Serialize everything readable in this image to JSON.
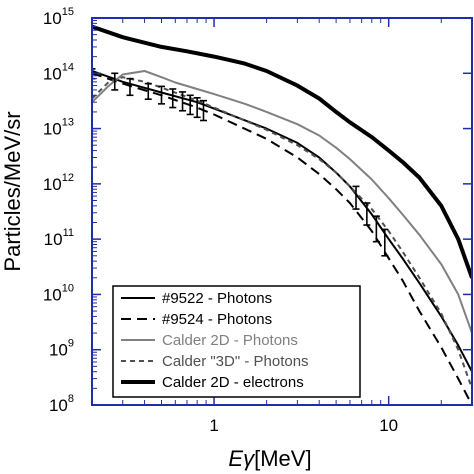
{
  "chart_data": {
    "type": "line",
    "title": "",
    "xlabel_prefix": "E",
    "xlabel_greek": "γ",
    "xlabel_unit": "[MeV]",
    "ylabel": "Particles/MeV/sr",
    "xscale": "log",
    "yscale": "log",
    "xlim": [
      0.2,
      30
    ],
    "ylim": [
      100000000.0,
      1000000000000000.0
    ],
    "x_ticks": [
      {
        "value": 1,
        "label": "1"
      },
      {
        "value": 10,
        "label": "10"
      }
    ],
    "y_ticks": [
      {
        "value": 100000000.0,
        "base": "10",
        "exp": "8"
      },
      {
        "value": 1000000000.0,
        "base": "10",
        "exp": "9"
      },
      {
        "value": 10000000000.0,
        "base": "10",
        "exp": "10"
      },
      {
        "value": 100000000000.0,
        "base": "10",
        "exp": "11"
      },
      {
        "value": 1000000000000.0,
        "base": "10",
        "exp": "12"
      },
      {
        "value": 10000000000000.0,
        "base": "10",
        "exp": "13"
      },
      {
        "value": 100000000000000.0,
        "base": "10",
        "exp": "14"
      },
      {
        "value": 1000000000000000.0,
        "base": "10",
        "exp": "15"
      }
    ],
    "legend_position": "bottom-center",
    "axis_color": "#1f2fa6",
    "series": [
      {
        "name": "#9522 - Photons",
        "color": "#000000",
        "style": "solid",
        "width": 2,
        "x": [
          0.2,
          0.3,
          0.5,
          0.8,
          1,
          2,
          3,
          4,
          5,
          6,
          8,
          10,
          12,
          15,
          20,
          25,
          30
        ],
        "y": [
          110000000000000.0,
          70000000000000.0,
          45000000000000.0,
          30000000000000.0,
          23000000000000.0,
          10000000000000.0,
          5500000000000.0,
          3000000000000.0,
          1600000000000.0,
          900000000000.0,
          280000000000.0,
          100000000000.0,
          45000000000.0,
          16000000000.0,
          4000000000.0,
          1200000000.0,
          400000000.0
        ]
      },
      {
        "name": "#9524 - Photons",
        "color": "#000000",
        "style": "dashed",
        "width": 2,
        "x": [
          0.2,
          0.3,
          0.5,
          0.8,
          1,
          2,
          3,
          4,
          5,
          6,
          8,
          10,
          12,
          15,
          20,
          25,
          30
        ],
        "y": [
          100000000000000.0,
          65000000000000.0,
          40000000000000.0,
          24000000000000.0,
          18000000000000.0,
          6500000000000.0,
          3000000000000.0,
          1500000000000.0,
          800000000000.0,
          450000000000.0,
          140000000000.0,
          45000000000.0,
          18000000000.0,
          5000000000.0,
          1100000000.0,
          300000000.0,
          100000000.0
        ]
      },
      {
        "name": "Calder 2D - Photons",
        "color": "#808080",
        "style": "solid",
        "width": 2,
        "x": [
          0.2,
          0.25,
          0.3,
          0.4,
          0.5,
          0.6,
          0.8,
          1,
          1.5,
          2,
          3,
          4,
          5,
          6,
          8,
          10,
          12,
          15,
          20,
          25,
          30
        ],
        "y": [
          30000000000000.0,
          60000000000000.0,
          95000000000000.0,
          110000000000000.0,
          85000000000000.0,
          68000000000000.0,
          52000000000000.0,
          42000000000000.0,
          28000000000000.0,
          20000000000000.0,
          12000000000000.0,
          7500000000000.0,
          4500000000000.0,
          2800000000000.0,
          1200000000000.0,
          550000000000.0,
          280000000000.0,
          120000000000.0,
          35000000000.0,
          10000000000.0,
          2000000000.0
        ]
      },
      {
        "name": "Calder \"3D\" - Photons",
        "color": "#505050",
        "style": "dotted",
        "width": 2,
        "x": [
          0.2,
          0.25,
          0.3,
          0.4,
          0.5,
          0.8,
          1,
          1.5,
          2,
          3,
          4,
          5,
          6,
          8,
          10,
          12,
          15,
          20,
          25,
          30
        ],
        "y": [
          35000000000000.0,
          70000000000000.0,
          85000000000000.0,
          70000000000000.0,
          55000000000000.0,
          32000000000000.0,
          24000000000000.0,
          14000000000000.0,
          9500000000000.0,
          5000000000000.0,
          2800000000000.0,
          1600000000000.0,
          900000000000.0,
          350000000000.0,
          140000000000.0,
          60000000000.0,
          20000000000.0,
          4500000000.0,
          1000000000.0,
          200000000.0
        ]
      },
      {
        "name": "Calder 2D - electrons",
        "color": "#000000",
        "style": "solid",
        "width": 4,
        "x": [
          0.2,
          0.3,
          0.5,
          0.7,
          1,
          1.5,
          2,
          3,
          4,
          5,
          6,
          8,
          10,
          12,
          15,
          20,
          25,
          30
        ],
        "y": [
          700000000000000.0,
          450000000000000.0,
          300000000000000.0,
          250000000000000.0,
          200000000000000.0,
          150000000000000.0,
          110000000000000.0,
          60000000000000.0,
          35000000000000.0,
          20000000000000.0,
          13000000000000.0,
          7000000000000.0,
          4000000000000.0,
          2500000000000.0,
          1300000000000.0,
          400000000000.0,
          100000000000.0,
          20000000000.0
        ]
      }
    ],
    "error_bars": {
      "series": "#9522 - Photons",
      "x": [
        0.2,
        0.27,
        0.33,
        0.42,
        0.5,
        0.58,
        0.66,
        0.73,
        0.8,
        0.87
      ],
      "y": [
        100000000000000.0,
        75000000000000.0,
        60000000000000.0,
        50000000000000.0,
        43000000000000.0,
        38000000000000.0,
        33000000000000.0,
        29000000000000.0,
        26000000000000.0,
        23000000000000.0
      ],
      "ylow": [
        80000000000000.0,
        50000000000000.0,
        40000000000000.0,
        34000000000000.0,
        28000000000000.0,
        24000000000000.0,
        21000000000000.0,
        18000000000000.0,
        16000000000000.0,
        14000000000000.0
      ],
      "yhigh": [
        120000000000000.0,
        100000000000000.0,
        80000000000000.0,
        65000000000000.0,
        58000000000000.0,
        52000000000000.0,
        46000000000000.0,
        40000000000000.0,
        36000000000000.0,
        32000000000000.0
      ]
    },
    "error_bars_2": {
      "series": "#9524 - Photons",
      "x": [
        6.5,
        7.5,
        8.5,
        9.5
      ],
      "y": [
        600000000000.0,
        300000000000.0,
        160000000000.0,
        90000000000.0
      ],
      "ylow": [
        350000000000.0,
        180000000000.0,
        90000000000.0,
        50000000000.0
      ],
      "yhigh": [
        900000000000.0,
        450000000000.0,
        260000000000.0,
        150000000000.0
      ]
    }
  }
}
